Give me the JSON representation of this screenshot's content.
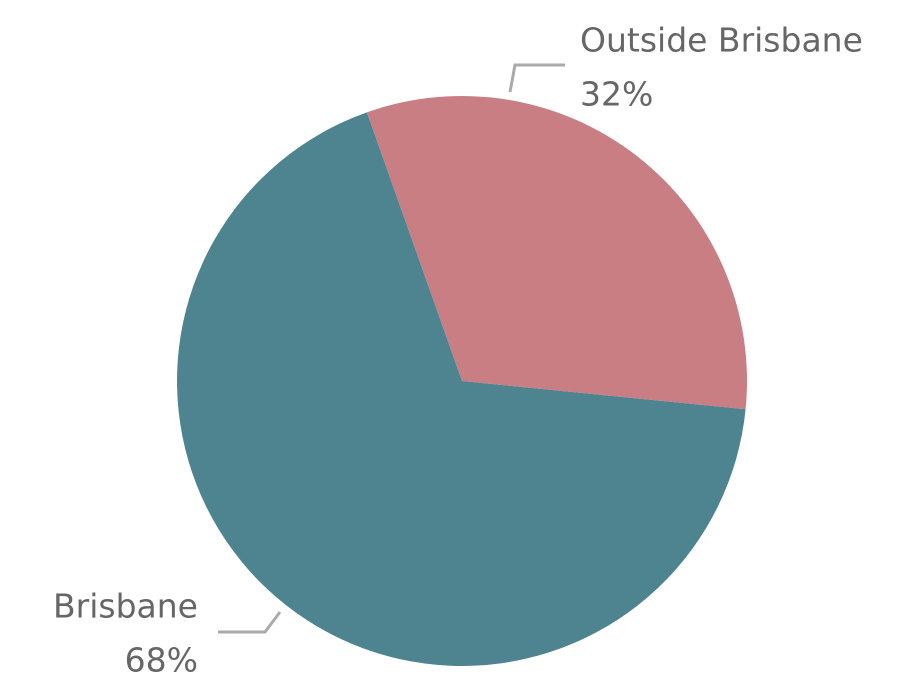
{
  "chart_data": {
    "type": "pie",
    "categories": [
      "Outside Brisbane",
      "Brisbane"
    ],
    "values": [
      32,
      68
    ],
    "value_labels": [
      "32%",
      "68%"
    ],
    "colors": [
      "#c97e83",
      "#4e8490"
    ]
  }
}
